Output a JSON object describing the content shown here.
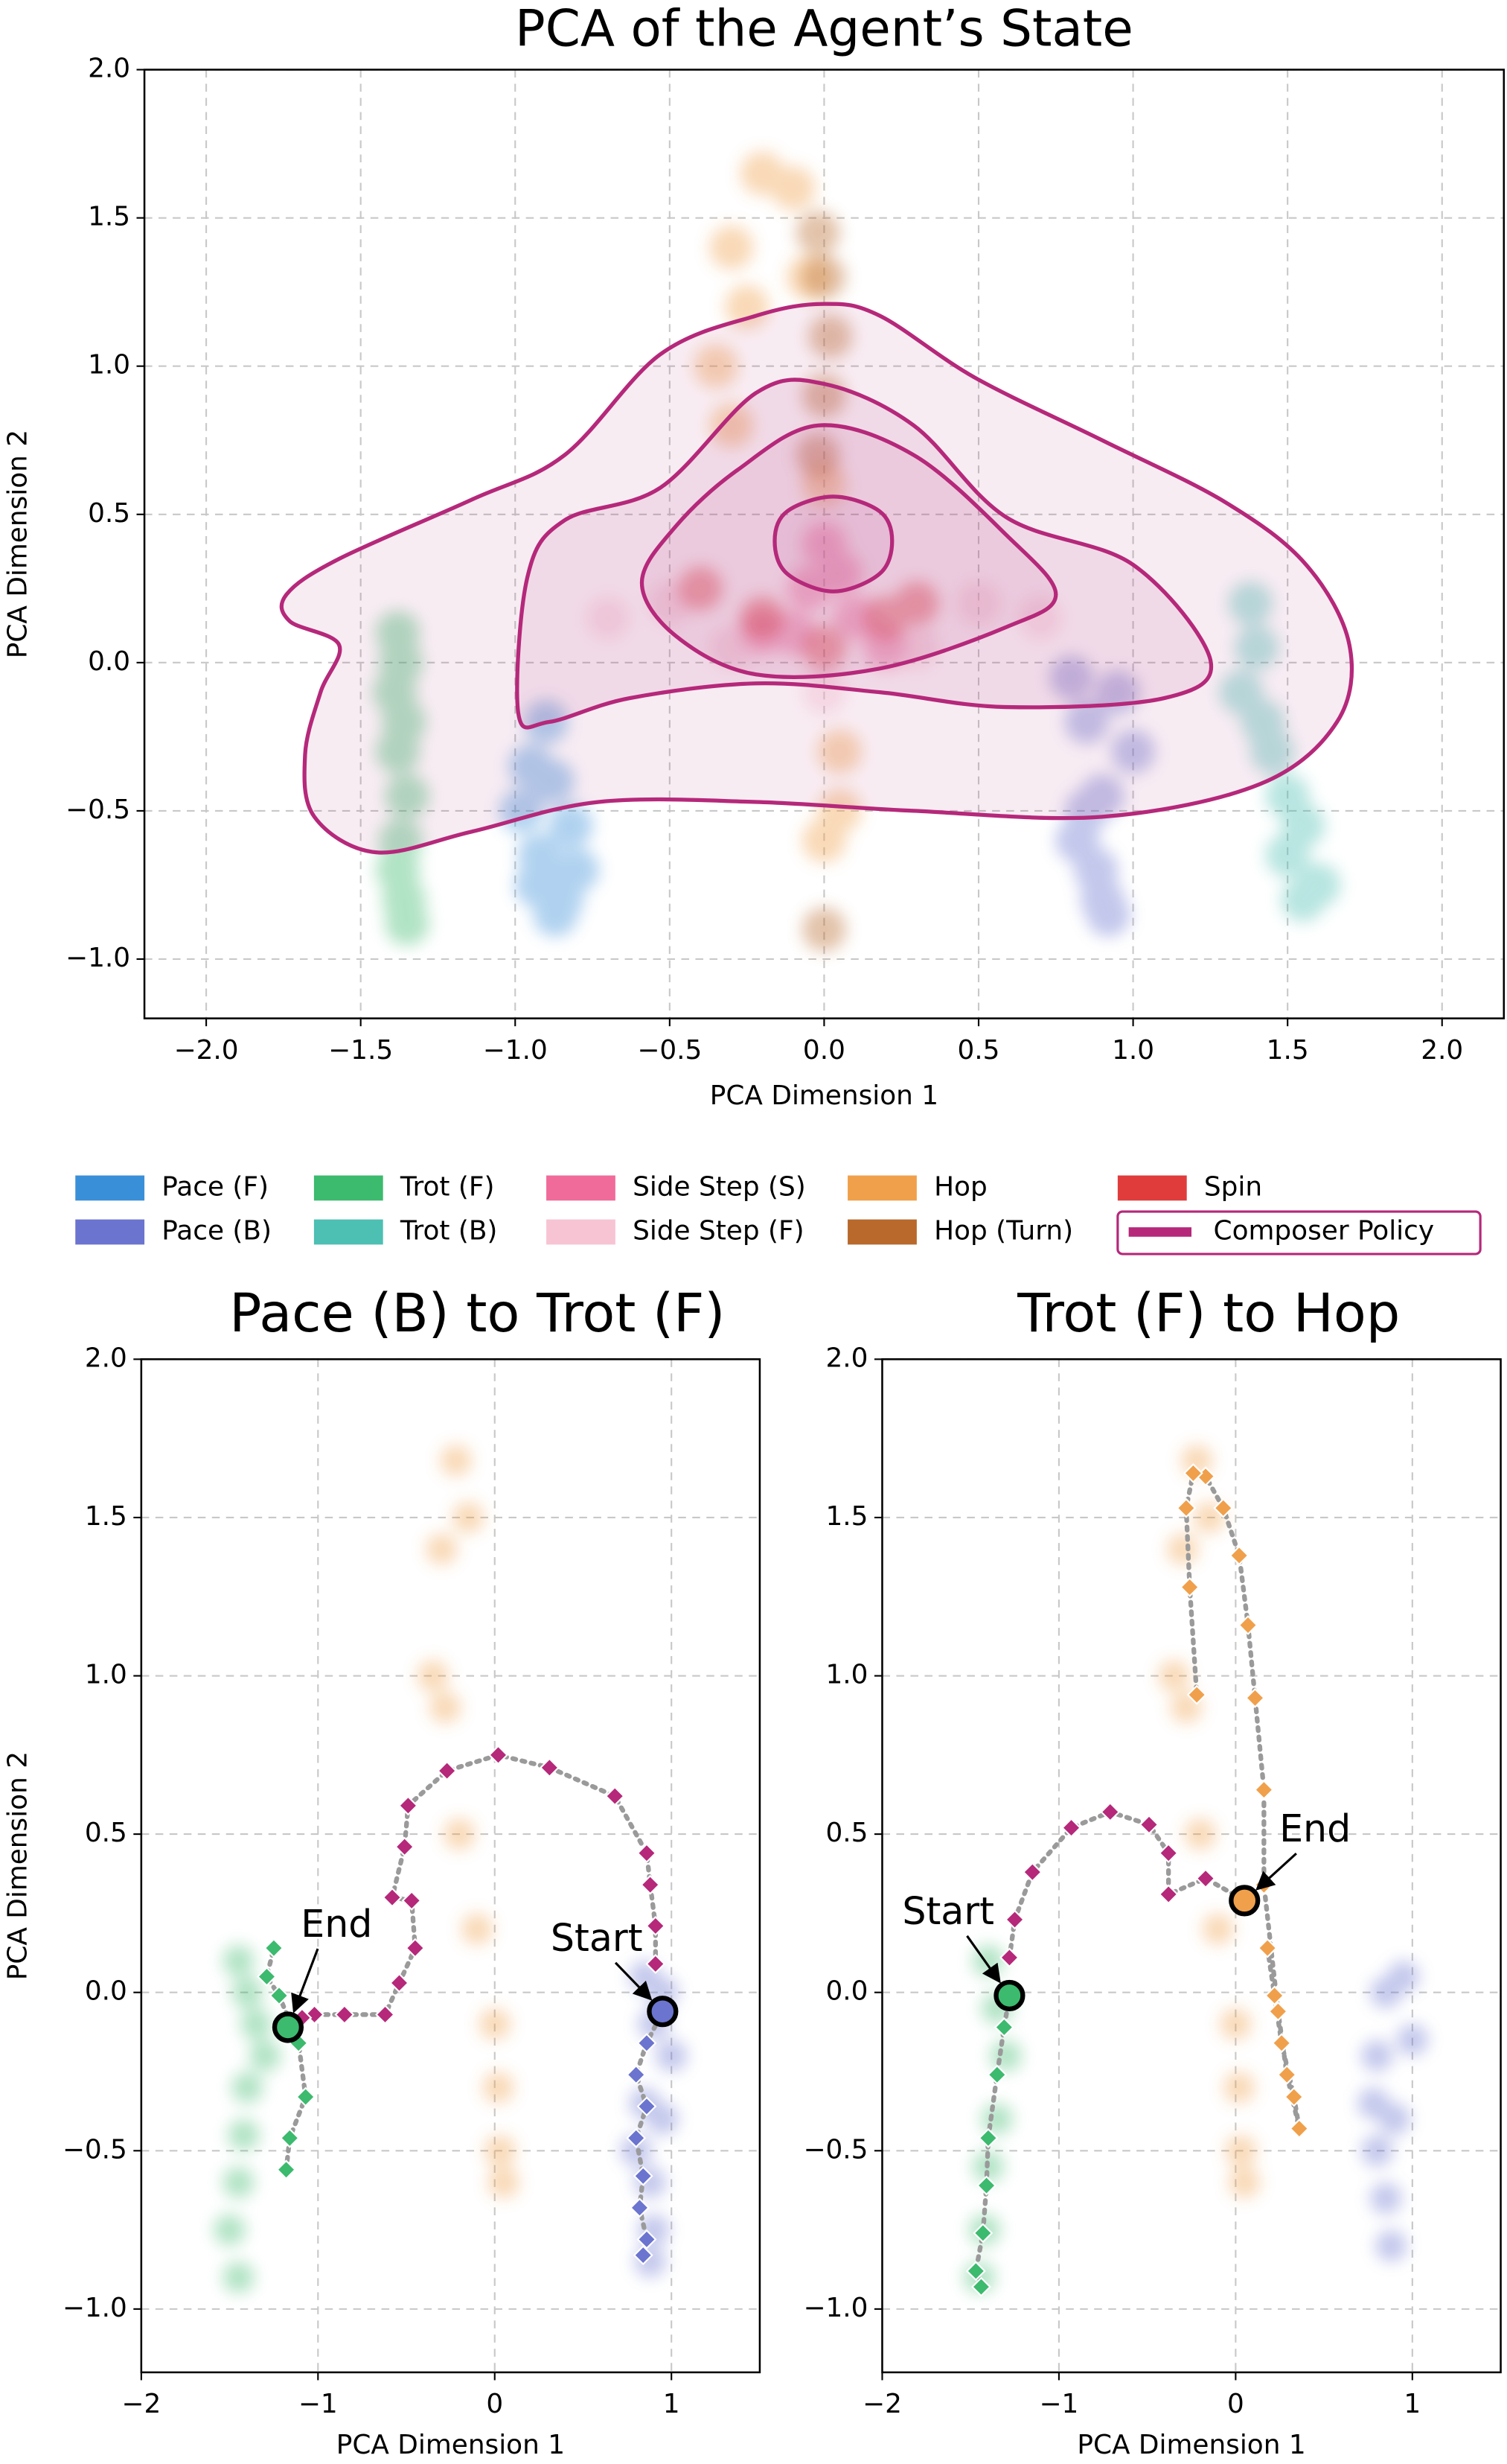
{
  "chart_data": [
    {
      "type": "scatter",
      "title": "PCA of the Agent’s State",
      "x_label": "PCA Dimension 1",
      "y_label": "PCA Dimension 2",
      "xlim": [
        -2.2,
        2.2
      ],
      "ylim": [
        -1.2,
        2.0
      ],
      "xticks": [
        {
          "value": -2,
          "label": "−2.0"
        },
        {
          "value": -1.5,
          "label": "−1.5"
        },
        {
          "value": -1,
          "label": "−1.0"
        },
        {
          "value": -0.5,
          "label": "−0.5"
        },
        {
          "value": 0,
          "label": "0.0"
        },
        0.5,
        {
          "value": 1,
          "label": "1.0"
        },
        1.5,
        {
          "value": 2,
          "label": "2.0"
        }
      ],
      "yticks": [
        {
          "value": -1,
          "label": "−1.0"
        },
        {
          "value": -0.5,
          "label": "−0.5"
        },
        {
          "value": 0,
          "label": "0.0"
        },
        0.5,
        {
          "value": 1,
          "label": "1.0"
        },
        1.5,
        {
          "value": 2,
          "label": "2.0"
        }
      ],
      "grid": true,
      "legend": "below",
      "series": [
        {
          "name": "Pace (F)",
          "color": "#3a8fd9",
          "x": [
            -0.9,
            -0.95,
            -0.98,
            -0.92,
            -0.85,
            -0.8,
            -0.82,
            -0.88,
            -0.93,
            -0.87
          ],
          "y": [
            -0.2,
            -0.35,
            -0.5,
            -0.65,
            -0.8,
            -0.7,
            -0.55,
            -0.4,
            -0.75,
            -0.85
          ]
        },
        {
          "name": "Pace (B)",
          "color": "#6b74cf",
          "x": [
            0.8,
            0.85,
            0.95,
            1.0,
            0.9,
            0.85,
            0.82,
            0.88,
            0.9,
            0.92
          ],
          "y": [
            -0.05,
            -0.2,
            -0.1,
            -0.3,
            -0.45,
            -0.5,
            -0.6,
            -0.7,
            -0.8,
            -0.85
          ]
        },
        {
          "name": "Trot (F)",
          "color": "#3cba6e",
          "x": [
            -1.38,
            -1.37,
            -1.39,
            -1.36,
            -1.38,
            -1.35,
            -1.37,
            -1.38,
            -1.36,
            -1.35
          ],
          "y": [
            0.1,
            0.0,
            -0.1,
            -0.2,
            -0.3,
            -0.45,
            -0.6,
            -0.7,
            -0.8,
            -0.88
          ]
        },
        {
          "name": "Trot (B)",
          "color": "#4dbfb3",
          "x": [
            1.38,
            1.4,
            1.35,
            1.42,
            1.45,
            1.5,
            1.55,
            1.5,
            1.6,
            1.55
          ],
          "y": [
            0.2,
            0.05,
            -0.1,
            -0.2,
            -0.3,
            -0.45,
            -0.55,
            -0.65,
            -0.75,
            -0.8
          ]
        },
        {
          "name": "Side Step (S)",
          "color": "#f06b9a",
          "x": [
            0.0,
            0.05,
            -0.05,
            0.1,
            -0.1,
            0.2,
            -0.2
          ],
          "y": [
            0.4,
            0.3,
            0.25,
            0.15,
            0.1,
            0.05,
            0.1
          ]
        },
        {
          "name": "Side Step (F)",
          "color": "#f7c4d3",
          "x": [
            -0.5,
            -0.3,
            0.3,
            0.5,
            0.0,
            -0.7,
            0.7
          ],
          "y": [
            0.2,
            0.05,
            0.05,
            0.2,
            -0.1,
            0.15,
            0.15
          ]
        },
        {
          "name": "Hop",
          "color": "#f0a04b",
          "x": [
            -0.35,
            -0.3,
            -0.2,
            -0.1,
            -0.25,
            -0.3,
            -0.05,
            0.0,
            0.05,
            0.05,
            0.0
          ],
          "y": [
            1.0,
            1.4,
            1.65,
            1.6,
            1.2,
            0.8,
            1.3,
            0.6,
            -0.3,
            -0.5,
            -0.6
          ]
        },
        {
          "name": "Hop (Turn)",
          "color": "#b8692b",
          "x": [
            -0.02,
            0.0,
            0.02,
            0.0,
            -0.02,
            0.0
          ],
          "y": [
            1.45,
            1.3,
            1.1,
            0.9,
            0.7,
            -0.9
          ]
        },
        {
          "name": "Spin",
          "color": "#e03c3c",
          "x": [
            -0.2,
            0.0,
            0.2,
            -0.4,
            0.3
          ],
          "y": [
            0.15,
            0.05,
            0.15,
            0.25,
            0.2
          ]
        },
        {
          "name": "Composer Policy",
          "color": "#b5287a",
          "contours": [
            {
              "x": [
                -1.74,
                -1.57,
                -1.14,
                -0.84,
                -0.53,
                -0.22,
                0.0,
                0.18,
                0.49,
                0.9,
                1.3,
                1.56,
                1.7,
                1.66,
                1.41,
                0.9,
                0.29,
                -0.22,
                -0.73,
                -1.14,
                -1.45,
                -1.65,
                -1.68,
                -1.63,
                -1.57,
                -1.73
              ],
              "y": [
                0.23,
                0.35,
                0.55,
                0.7,
                1.04,
                1.17,
                1.21,
                1.17,
                0.96,
                0.75,
                0.54,
                0.33,
                0.06,
                -0.2,
                -0.41,
                -0.52,
                -0.5,
                -0.47,
                -0.47,
                -0.57,
                -0.64,
                -0.52,
                -0.31,
                -0.1,
                0.06,
                0.14
              ]
            },
            {
              "x": [
                -0.99,
                -0.96,
                -0.84,
                -0.53,
                -0.22,
                0.0,
                0.29,
                0.59,
                1.0,
                1.25,
                1.1,
                0.59,
                0.18,
                -0.22,
                -0.63,
                -0.89
              ],
              "y": [
                -0.17,
                0.29,
                0.48,
                0.59,
                0.91,
                0.94,
                0.8,
                0.49,
                0.33,
                0.01,
                -0.12,
                -0.15,
                -0.1,
                -0.07,
                -0.12,
                -0.2
              ]
            },
            {
              "x": [
                -0.59,
                -0.48,
                -0.28,
                -0.02,
                0.29,
                0.59,
                0.75,
                0.59,
                0.18,
                -0.22,
                -0.48
              ],
              "y": [
                0.27,
                0.46,
                0.65,
                0.8,
                0.7,
                0.43,
                0.23,
                0.12,
                -0.02,
                -0.04,
                0.09
              ]
            },
            {
              "x": [
                -0.16,
                -0.12,
                0.03,
                0.18,
                0.22,
                0.18,
                0.03,
                -0.12
              ],
              "y": [
                0.41,
                0.51,
                0.56,
                0.51,
                0.41,
                0.3,
                0.24,
                0.3
              ]
            }
          ]
        }
      ]
    },
    {
      "type": "trajectory",
      "title": "Pace (B) to Trot (F)",
      "x_label": "PCA Dimension 1",
      "y_label": "PCA Dimension 2",
      "xlim": [
        -2,
        1.5
      ],
      "ylim": [
        -1.2,
        2.0
      ],
      "xticks": [
        {
          "value": -2,
          "label": "−2"
        },
        {
          "value": -1,
          "label": "−1"
        },
        0,
        1
      ],
      "yticks": [
        {
          "value": -1,
          "label": "−1.0"
        },
        {
          "value": -0.5,
          "label": "−0.5"
        },
        {
          "value": 0,
          "label": "0.0"
        },
        0.5,
        {
          "value": 1,
          "label": "1.0"
        },
        1.5,
        {
          "value": 2,
          "label": "2.0"
        }
      ],
      "grid": true,
      "clouds": [
        {
          "color": "#3cba6e",
          "x": [
            -1.45,
            -1.4,
            -1.35,
            -1.3,
            -1.4,
            -1.42,
            -1.45,
            -1.5,
            -1.45
          ],
          "y": [
            0.1,
            0.0,
            -0.1,
            -0.2,
            -0.3,
            -0.45,
            -0.6,
            -0.75,
            -0.9
          ]
        },
        {
          "color": "#f0a04b",
          "x": [
            -0.35,
            -0.3,
            -0.22,
            -0.15,
            -0.28,
            -0.2,
            -0.1,
            0.0,
            0.02,
            0.03,
            0.05
          ],
          "y": [
            1.0,
            1.4,
            1.68,
            1.5,
            0.9,
            0.5,
            0.2,
            -0.1,
            -0.3,
            -0.5,
            -0.6
          ]
        },
        {
          "color": "#6b74cf",
          "x": [
            0.85,
            0.9,
            0.95,
            1.0,
            0.95,
            0.85,
            0.8,
            0.88,
            0.9,
            0.88
          ],
          "y": [
            0.05,
            -0.1,
            0.0,
            -0.2,
            -0.4,
            -0.35,
            -0.5,
            -0.6,
            -0.75,
            -0.85
          ]
        }
      ],
      "paths": [
        {
          "color": "#6b74cf",
          "x": [
            0.84,
            0.86,
            0.82,
            0.84,
            0.8,
            0.86,
            0.8,
            0.86,
            0.95
          ],
          "y": [
            -0.83,
            -0.78,
            -0.68,
            -0.58,
            -0.46,
            -0.36,
            -0.26,
            -0.16,
            -0.06
          ]
        },
        {
          "color": "#b5287a",
          "x": [
            0.91,
            0.91,
            0.88,
            0.86,
            0.68,
            0.31,
            0.02,
            -0.27,
            -0.49,
            -0.51,
            -0.58,
            -0.47,
            -0.45,
            -0.54,
            -0.62,
            -0.85,
            -1.02,
            -1.09
          ],
          "y": [
            0.09,
            0.21,
            0.34,
            0.44,
            0.62,
            0.71,
            0.75,
            0.7,
            0.59,
            0.46,
            0.3,
            0.29,
            0.14,
            0.03,
            -0.07,
            -0.07,
            -0.07,
            -0.08
          ]
        },
        {
          "color": "#3cba6e",
          "x": [
            -1.18,
            -1.16,
            -1.07,
            -1.11,
            -1.22,
            -1.29,
            -1.25
          ],
          "y": [
            -0.56,
            -0.46,
            -0.33,
            -0.16,
            -0.01,
            0.05,
            0.14
          ]
        }
      ],
      "markers": [
        {
          "label": "Start",
          "x": 0.95,
          "y": -0.06,
          "color": "#6b74cf"
        },
        {
          "label": "End",
          "x": -1.17,
          "y": -0.11,
          "color": "#3cba6e"
        }
      ]
    },
    {
      "type": "trajectory",
      "title": "Trot (F) to Hop",
      "x_label": "PCA Dimension 1",
      "xlim": [
        -2,
        1.5
      ],
      "ylim": [
        -1.2,
        2.0
      ],
      "xticks": [
        {
          "value": -2,
          "label": "−2"
        },
        {
          "value": -1,
          "label": "−1"
        },
        0,
        1
      ],
      "yticks": [
        {
          "value": -1,
          "label": "−1.0"
        },
        {
          "value": -0.5,
          "label": "−0.5"
        },
        {
          "value": 0,
          "label": "0.0"
        },
        0.5,
        {
          "value": 1,
          "label": "1.0"
        },
        1.5,
        {
          "value": 2,
          "label": "2.0"
        }
      ],
      "grid": true,
      "clouds": [
        {
          "color": "#3cba6e",
          "x": [
            -1.4,
            -1.35,
            -1.3,
            -1.35,
            -1.4,
            -1.42,
            -1.45
          ],
          "y": [
            0.1,
            -0.05,
            -0.2,
            -0.4,
            -0.55,
            -0.75,
            -0.9
          ]
        },
        {
          "color": "#f0a04b",
          "x": [
            -0.35,
            -0.3,
            -0.22,
            -0.15,
            -0.28,
            -0.2,
            -0.1,
            0.0,
            0.02,
            0.03,
            0.05
          ],
          "y": [
            1.0,
            1.4,
            1.68,
            1.5,
            0.9,
            0.5,
            0.2,
            -0.1,
            -0.3,
            -0.5,
            -0.6
          ]
        },
        {
          "color": "#6b74cf",
          "x": [
            0.8,
            0.85,
            0.95,
            1.0,
            0.9,
            0.78,
            0.8,
            0.85,
            0.88
          ],
          "y": [
            -0.2,
            0.0,
            0.05,
            -0.15,
            -0.4,
            -0.35,
            -0.5,
            -0.65,
            -0.8
          ]
        }
      ],
      "paths": [
        {
          "color": "#3cba6e",
          "x": [
            -1.44,
            -1.47,
            -1.43,
            -1.41,
            -1.4,
            -1.35,
            -1.31,
            -1.28
          ],
          "y": [
            -0.93,
            -0.88,
            -0.76,
            -0.61,
            -0.46,
            -0.26,
            -0.11,
            -0.01
          ]
        },
        {
          "color": "#b5287a",
          "x": [
            -1.28,
            -1.25,
            -1.15,
            -0.93,
            -0.71,
            -0.49,
            -0.38,
            -0.38,
            -0.17,
            0.02
          ],
          "y": [
            0.11,
            0.23,
            0.38,
            0.52,
            0.57,
            0.53,
            0.44,
            0.31,
            0.36,
            0.3
          ]
        },
        {
          "color": "#f0a04b",
          "x": [
            0.18,
            0.22,
            0.26,
            0.33,
            0.36,
            0.29,
            0.24,
            0.16,
            0.16,
            0.11,
            0.07,
            0.02,
            -0.07,
            -0.17,
            -0.24,
            -0.28,
            -0.26,
            -0.22
          ],
          "y": [
            0.14,
            -0.01,
            -0.16,
            -0.33,
            -0.43,
            -0.26,
            -0.06,
            0.34,
            0.64,
            0.93,
            1.16,
            1.38,
            1.53,
            1.63,
            1.64,
            1.53,
            1.28,
            0.94
          ]
        }
      ],
      "markers": [
        {
          "label": "Start",
          "x": -1.28,
          "y": -0.01,
          "color": "#3cba6e"
        },
        {
          "label": "End",
          "x": 0.05,
          "y": 0.29,
          "color": "#f0a04b"
        }
      ]
    }
  ]
}
